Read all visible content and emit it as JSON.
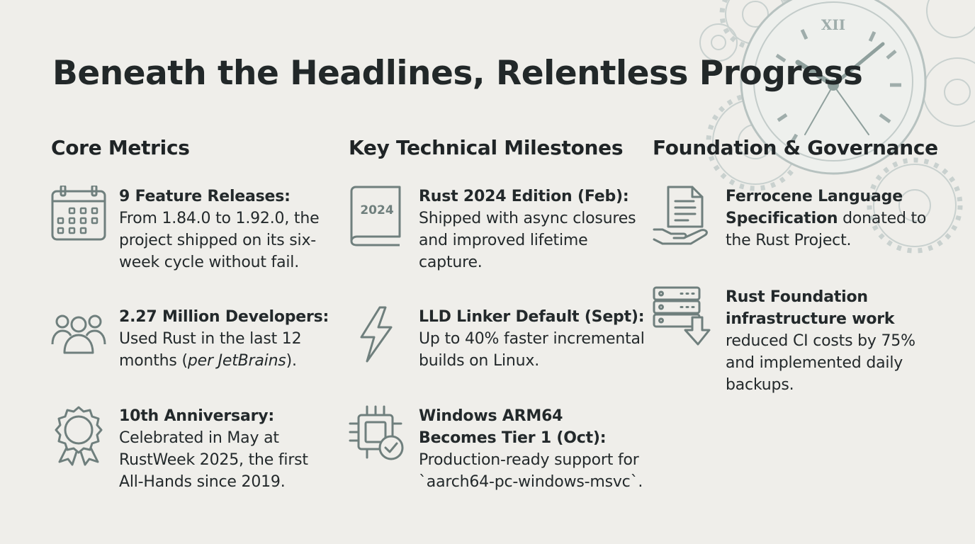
{
  "title": "Beneath the Headlines, Relentless Progress",
  "columns": [
    {
      "heading": "Core Metrics",
      "items": [
        {
          "icon": "calendar-icon",
          "bold": "9 Feature Releases:",
          "text": "From 1.84.0 to 1.92.0, the project shipped on its six-week cycle without fail."
        },
        {
          "icon": "people-icon",
          "bold": "2.27 Million Developers:",
          "text": "Used Rust in the last 12 months (",
          "italic": "per JetBrains",
          "after": ")."
        },
        {
          "icon": "award-ribbon-icon",
          "bold": "10th Anniversary:",
          "text": "Celebrated in May at RustWeek 2025, the first All-Hands since 2019."
        }
      ]
    },
    {
      "heading": "Key Technical Milestones",
      "items": [
        {
          "icon": "book-icon",
          "icon_label": "2024",
          "bold": "Rust 2024 Edition (Feb):",
          "text": "Shipped with async closures and improved lifetime capture."
        },
        {
          "icon": "lightning-bolt-icon",
          "bold": "LLD Linker Default (Sept):",
          "text": "Up to 40% faster incremental builds on Linux."
        },
        {
          "icon": "chip-checkmark-icon",
          "bold": "Windows ARM64 Becomes Tier 1 (Oct):",
          "text": "Production-ready support for `aarch64-pc-windows-msvc`."
        }
      ]
    },
    {
      "heading": "Foundation & Governance",
      "items": [
        {
          "icon": "document-hand-icon",
          "bold": "Ferrocene Language Specification",
          "text": "donated to the Rust Project."
        },
        {
          "icon": "server-download-icon",
          "bold": "Rust Foundation infrastructure work",
          "text": "reduced CI costs by 75% and implemented daily backups."
        }
      ]
    }
  ],
  "decor": {
    "icon": "clock-gears-icon",
    "clock_numeral": "XII"
  },
  "colors": {
    "background": "#efeeea",
    "icon_stroke": "#6f7f7d",
    "text": "#23292b",
    "decor": "#c3ccca"
  }
}
